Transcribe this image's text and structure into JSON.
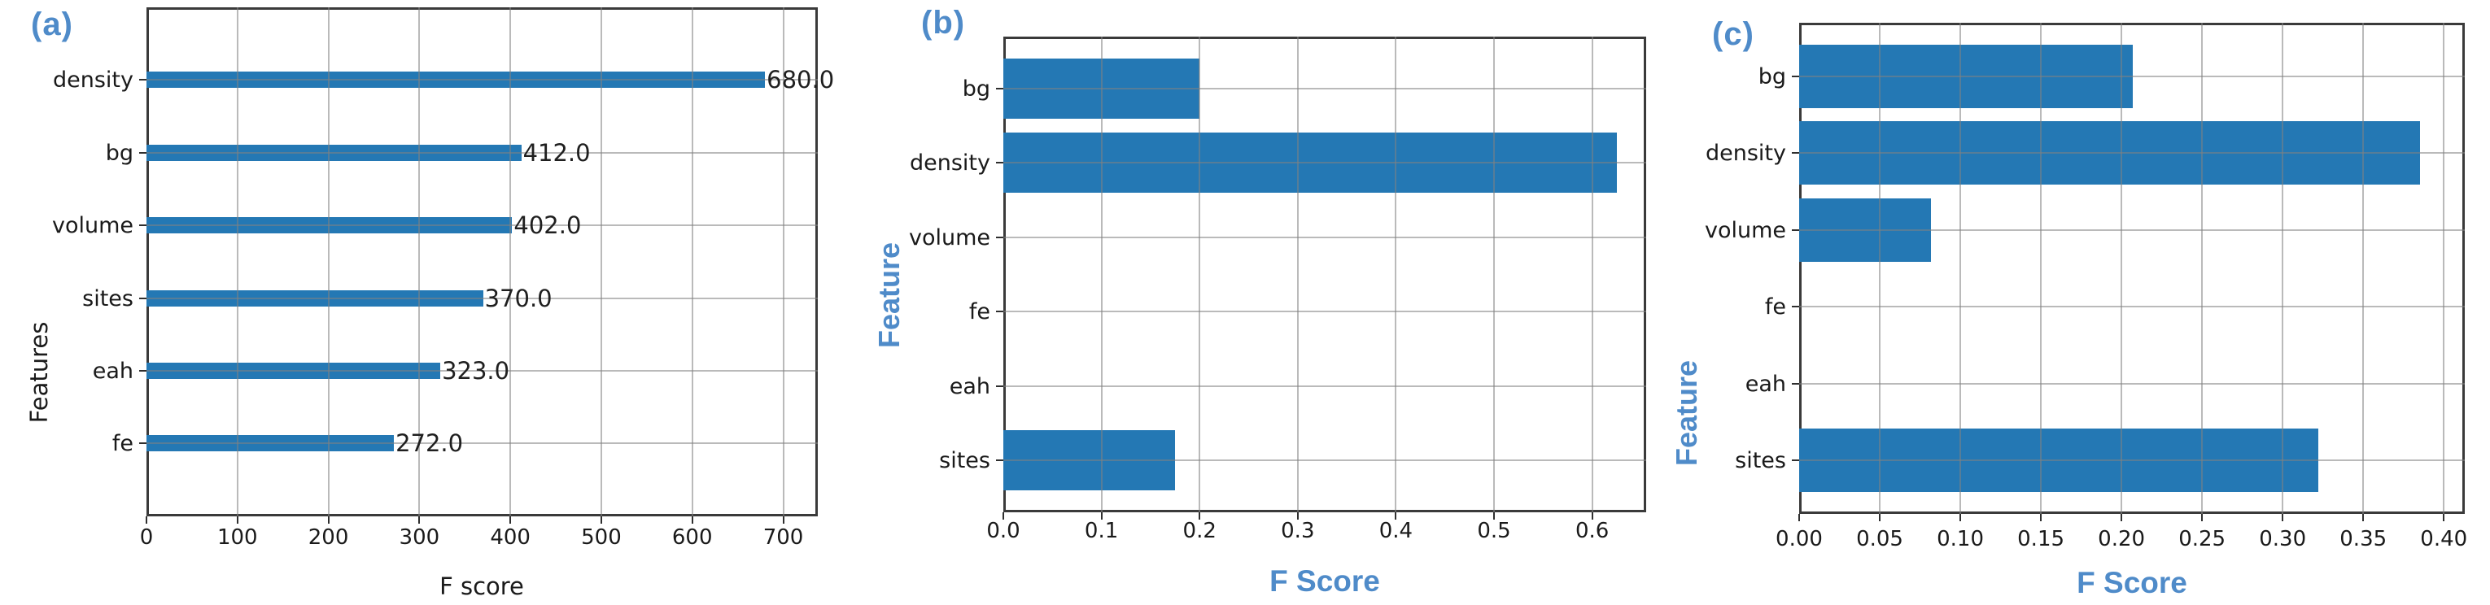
{
  "colors": {
    "bar": "#2478b4",
    "accent": "#4f8bc9",
    "grid": "rgba(130,130,130,0.55)",
    "spine": "#3a3a3a",
    "text": "#1a1a1a"
  },
  "chart_data": [
    {
      "type": "bar",
      "orientation": "horizontal",
      "tag": "(a)",
      "xlabel": "F score",
      "ylabel": "Features",
      "categories": [
        "density",
        "bg",
        "volume",
        "sites",
        "eah",
        "fe"
      ],
      "values": [
        680,
        412,
        402,
        370,
        323,
        272
      ],
      "value_labels": [
        "680.0",
        "412.0",
        "402.0",
        "370.0",
        "323.0",
        "272.0"
      ],
      "xtick_labels": [
        "0",
        "100",
        "200",
        "300",
        "400",
        "500",
        "600",
        "700"
      ],
      "xtick_values": [
        0,
        100,
        200,
        300,
        400,
        500,
        600,
        700
      ],
      "xlim": [
        0,
        738
      ],
      "grid": true,
      "legend": "none"
    },
    {
      "type": "bar",
      "orientation": "horizontal",
      "tag": "(b)",
      "xlabel": "F Score",
      "ylabel": "Feature",
      "categories": [
        "bg",
        "density",
        "volume",
        "fe",
        "eah",
        "sites"
      ],
      "values": [
        0.2,
        0.625,
        0,
        0,
        0,
        0.175
      ],
      "value_labels": [],
      "xtick_labels": [
        "0.0",
        "0.1",
        "0.2",
        "0.3",
        "0.4",
        "0.5",
        "0.6"
      ],
      "xtick_values": [
        0,
        0.1,
        0.2,
        0.3,
        0.4,
        0.5,
        0.6
      ],
      "xlim": [
        0,
        0.655
      ],
      "grid": true,
      "legend": "none"
    },
    {
      "type": "bar",
      "orientation": "horizontal",
      "tag": "(c)",
      "xlabel": "F Score",
      "ylabel": "Feature",
      "categories": [
        "bg",
        "density",
        "volume",
        "fe",
        "eah",
        "sites"
      ],
      "values": [
        0.207,
        0.385,
        0.082,
        0,
        0,
        0.322
      ],
      "value_labels": [],
      "xtick_labels": [
        "0.00",
        "0.05",
        "0.10",
        "0.15",
        "0.20",
        "0.25",
        "0.30",
        "0.35",
        "0.40"
      ],
      "xtick_values": [
        0,
        0.05,
        0.1,
        0.15,
        0.2,
        0.25,
        0.3,
        0.35,
        0.4
      ],
      "xlim": [
        0,
        0.413
      ],
      "grid": true,
      "legend": "none"
    }
  ]
}
